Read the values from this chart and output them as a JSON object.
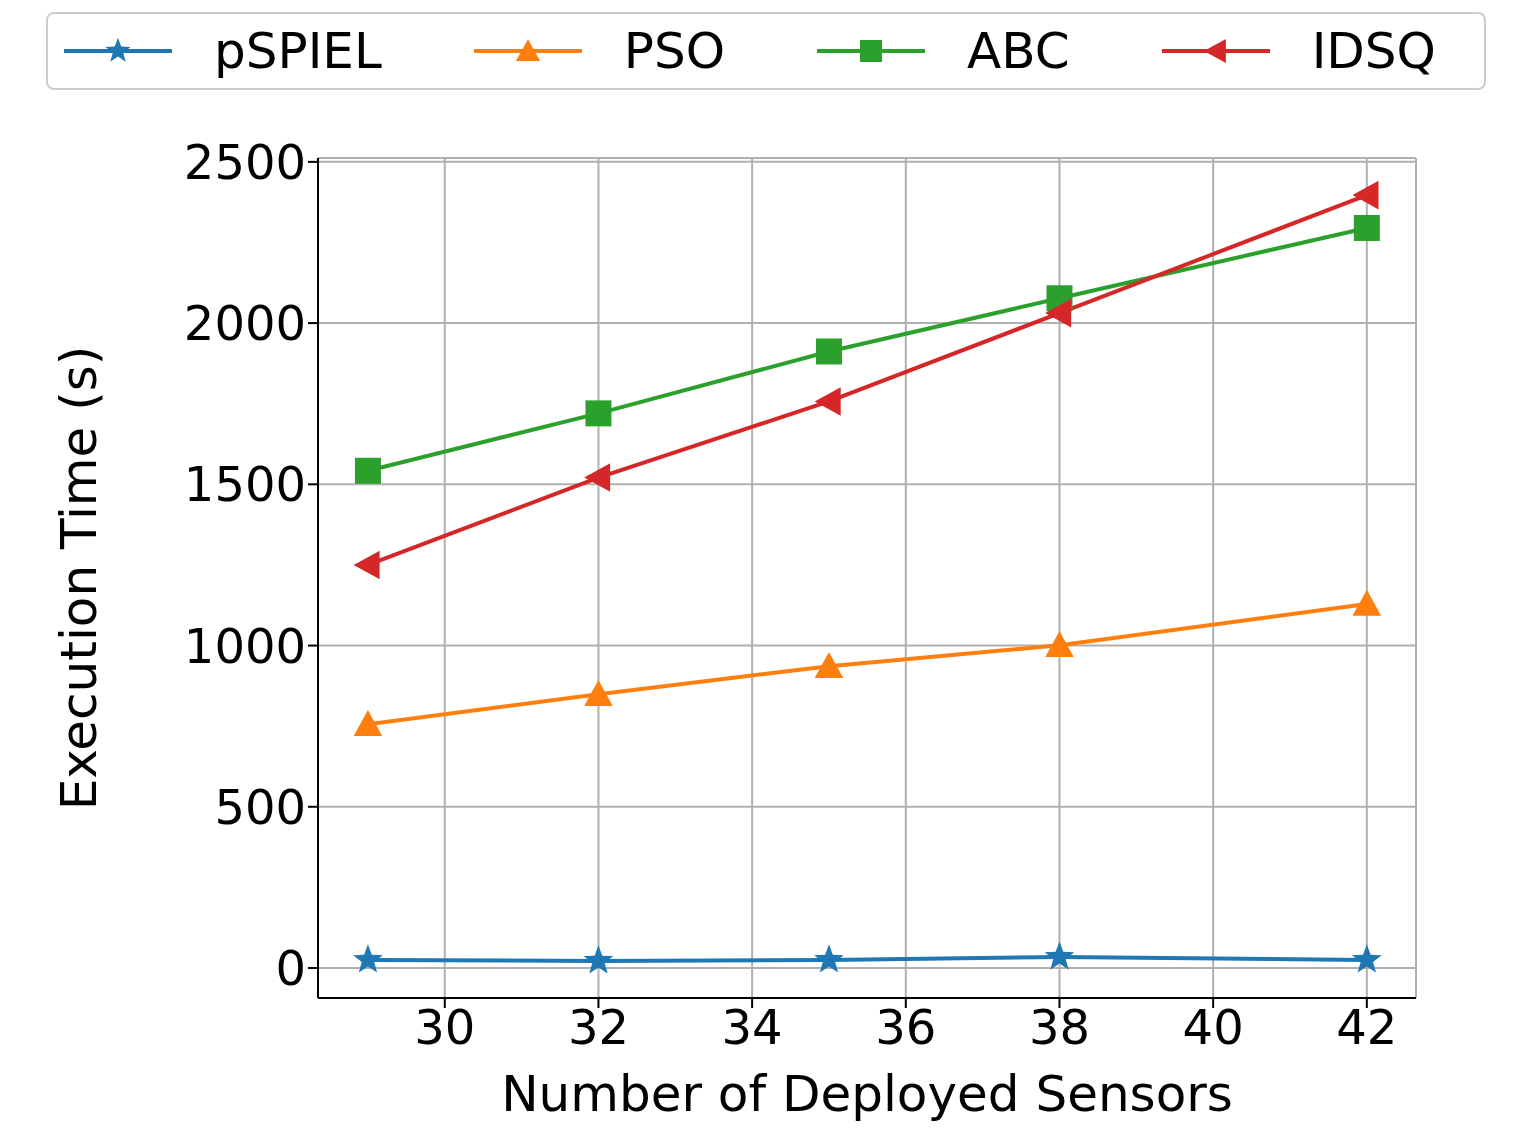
{
  "chart_data": {
    "type": "line",
    "xlabel": "Number of Deployed Sensors",
    "ylabel": "Execution Time (s)",
    "x": [
      29,
      32,
      35,
      38,
      42
    ],
    "xlim": [
      28.35,
      42.64
    ],
    "xticks": [
      30,
      32,
      34,
      36,
      38,
      40,
      42
    ],
    "ylim": [
      -93,
      2512
    ],
    "yticks": [
      0,
      500,
      1000,
      1500,
      2000,
      2500
    ],
    "grid": true,
    "legend": "top",
    "line_style": "solid",
    "series": [
      {
        "name": "pSPIEL",
        "color": "#1f77b4",
        "marker": "star",
        "values": [
          25,
          22,
          25,
          34,
          25
        ]
      },
      {
        "name": "PSO",
        "color": "#ff7f0e",
        "marker": "triangle",
        "values": [
          756,
          849,
          936,
          1001,
          1129
        ]
      },
      {
        "name": "ABC",
        "color": "#2ca02c",
        "marker": "square",
        "values": [
          1542,
          1720,
          1912,
          2077,
          2295
        ]
      },
      {
        "name": "IDSQ",
        "color": "#d62728",
        "marker": "triangle-left",
        "values": [
          1250,
          1521,
          1757,
          2031,
          2397
        ]
      }
    ]
  }
}
